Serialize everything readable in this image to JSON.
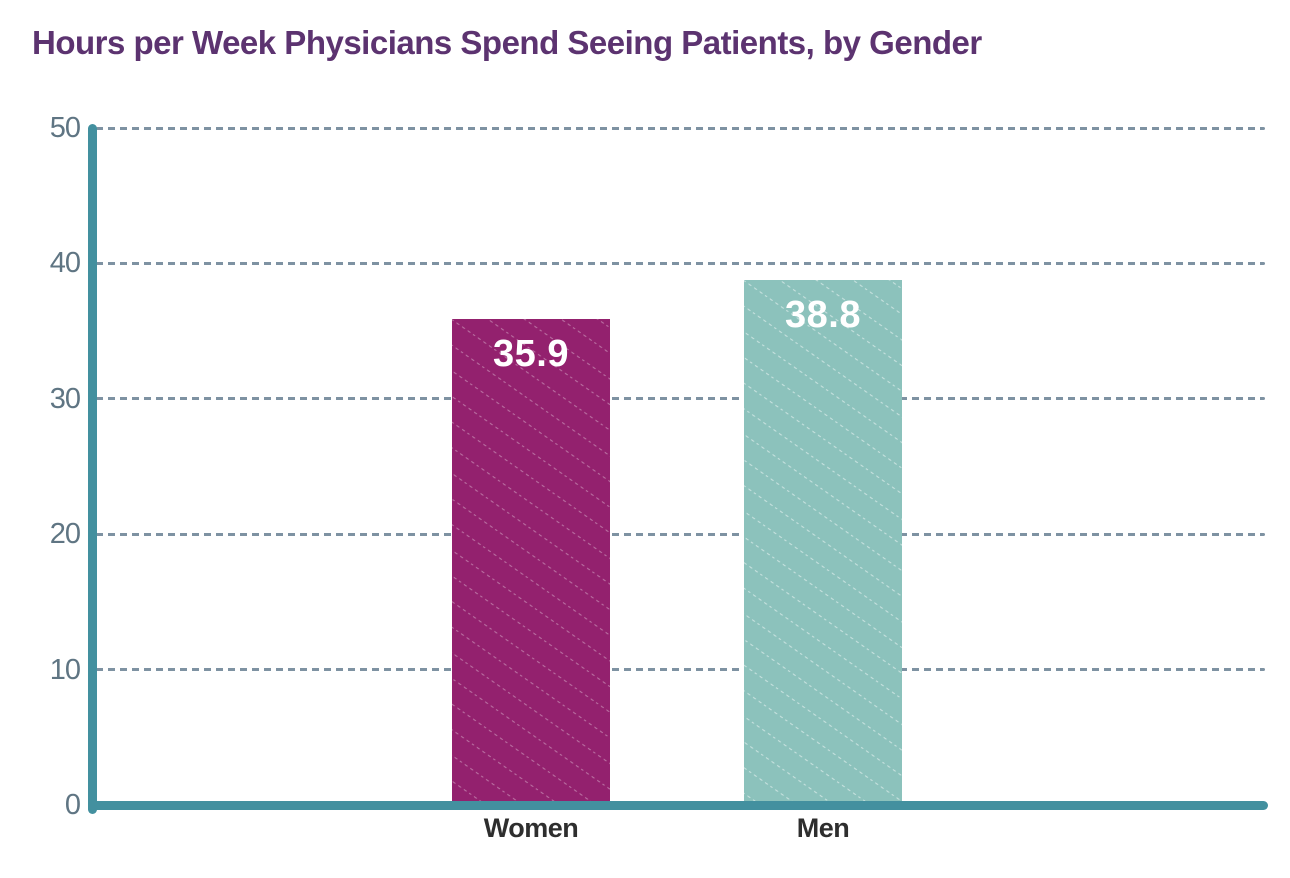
{
  "title": "Hours per Week Physicians Spend Seeing Patients, by Gender",
  "colors": {
    "title": "#5c3370",
    "axis": "#43909f",
    "gridline": "#7e92a2",
    "y_tick_label": "#5f7583",
    "x_category_label": "#2e2e2e",
    "value_label": "#ffffff",
    "women_bar": "#93216e",
    "men_bar": "#8cc2bc"
  },
  "chart_data": {
    "type": "bar",
    "title": "Hours per Week Physicians Spend Seeing Patients, by Gender",
    "categories": [
      "Women",
      "Men"
    ],
    "values": [
      35.9,
      38.8
    ],
    "value_labels": [
      "35.9",
      "38.8"
    ],
    "bar_colors": [
      "#93216e",
      "#8cc2bc"
    ],
    "bar_pattern": "diagonal-dotted-lines",
    "xlabel": "",
    "ylabel": "",
    "ylim": [
      0,
      50
    ],
    "yticks": [
      0,
      10,
      20,
      30,
      40,
      50
    ],
    "grid": "horizontal-dashed",
    "legend_position": "none"
  }
}
